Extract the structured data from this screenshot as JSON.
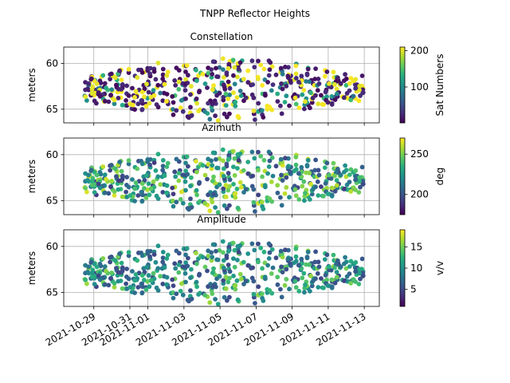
{
  "figure": {
    "suptitle": "TNPP Reflector Heights"
  },
  "x_axis": {
    "type": "date",
    "range": [
      "2021-10-27T08:00",
      "2021-11-13T20:00"
    ],
    "tick_labels": [
      "2021-10-29",
      "2021-10-31",
      "2021-11-01",
      "2021-11-03",
      "2021-11-05",
      "2021-11-07",
      "2021-11-09",
      "2021-11-11",
      "2021-11-13"
    ]
  },
  "colormap": "viridis",
  "chart_data": [
    {
      "type": "scatter",
      "title": "Constellation",
      "ylabel": "meters",
      "ylim": [
        66.5,
        58.2
      ],
      "y_inverted": true,
      "yticks": [
        60,
        65
      ],
      "grid": true,
      "colorbar": {
        "label": "Sat Numbers",
        "range": [
          1,
          210
        ],
        "ticks": [
          100,
          200
        ]
      },
      "color_mode": "constellation",
      "data_window": {
        "start": "2021-10-28T12:00",
        "end": "2021-11-12T23:00"
      },
      "y_center": 62.8,
      "y_spread": 3.5
    },
    {
      "type": "scatter",
      "title": "Azimuth",
      "ylabel": "meters",
      "ylim": [
        66.5,
        58.2
      ],
      "y_inverted": true,
      "yticks": [
        60,
        65
      ],
      "grid": true,
      "colorbar": {
        "label": "deg",
        "range": [
          175,
          270
        ],
        "ticks": [
          200,
          250
        ]
      },
      "color_mode": "azimuth",
      "data_window": {
        "start": "2021-10-28T12:00",
        "end": "2021-11-12T23:00"
      },
      "y_center": 62.8,
      "y_spread": 3.5
    },
    {
      "type": "scatter",
      "title": "Amplitude",
      "ylabel": "meters",
      "ylim": [
        66.5,
        58.2
      ],
      "y_inverted": true,
      "yticks": [
        60,
        65
      ],
      "grid": true,
      "colorbar": {
        "label": "v/v",
        "range": [
          1,
          19
        ],
        "ticks": [
          5,
          10,
          15
        ]
      },
      "color_mode": "amplitude",
      "data_window": {
        "start": "2021-10-28T12:00",
        "end": "2021-11-12T23:00"
      },
      "y_center": 62.8,
      "y_spread": 3.5
    }
  ]
}
